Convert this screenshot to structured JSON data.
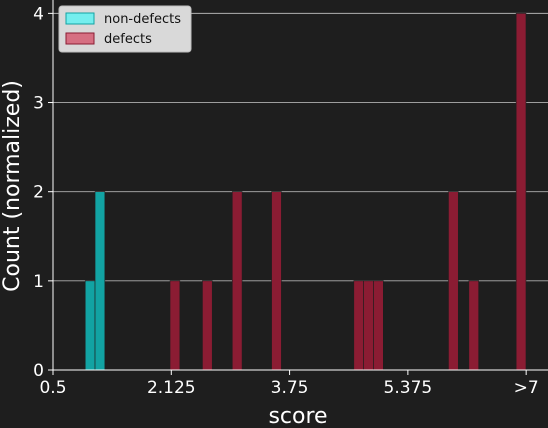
{
  "chart_data": {
    "type": "bar",
    "xlabel": "score",
    "ylabel": "Count (normalized)",
    "xlim": [
      0.5,
      7.3
    ],
    "ylim": [
      0,
      4.15
    ],
    "x_ticks": [
      {
        "value": 0.5,
        "label": "0.5"
      },
      {
        "value": 2.125,
        "label": "2.125"
      },
      {
        "value": 3.75,
        "label": "3.75"
      },
      {
        "value": 5.375,
        "label": "5.375"
      },
      {
        "value": 7.0,
        "label": ">7"
      }
    ],
    "y_ticks": [
      0,
      1,
      2,
      3,
      4
    ],
    "grid": "horizontal",
    "legend_position": "top-left",
    "bin_width": 0.135,
    "series": [
      {
        "name": "non-defects",
        "color": "#12a3a3",
        "bins": [
          {
            "x": 1.01,
            "count": 1
          },
          {
            "x": 1.145,
            "count": 2
          }
        ]
      },
      {
        "name": "defects",
        "color": "#8b1c33",
        "bins": [
          {
            "x": 2.175,
            "count": 1
          },
          {
            "x": 2.62,
            "count": 1
          },
          {
            "x": 3.03,
            "count": 2
          },
          {
            "x": 3.57,
            "count": 2
          },
          {
            "x": 4.7,
            "count": 1
          },
          {
            "x": 4.835,
            "count": 1
          },
          {
            "x": 4.97,
            "count": 1
          },
          {
            "x": 6.0,
            "count": 2
          },
          {
            "x": 6.28,
            "count": 1
          },
          {
            "x": 6.93,
            "count": 4
          }
        ]
      }
    ]
  },
  "legend": {
    "items": [
      {
        "label": "non-defects",
        "color": "#74eeee"
      },
      {
        "label": "defects",
        "color": "#d66f82"
      }
    ]
  }
}
